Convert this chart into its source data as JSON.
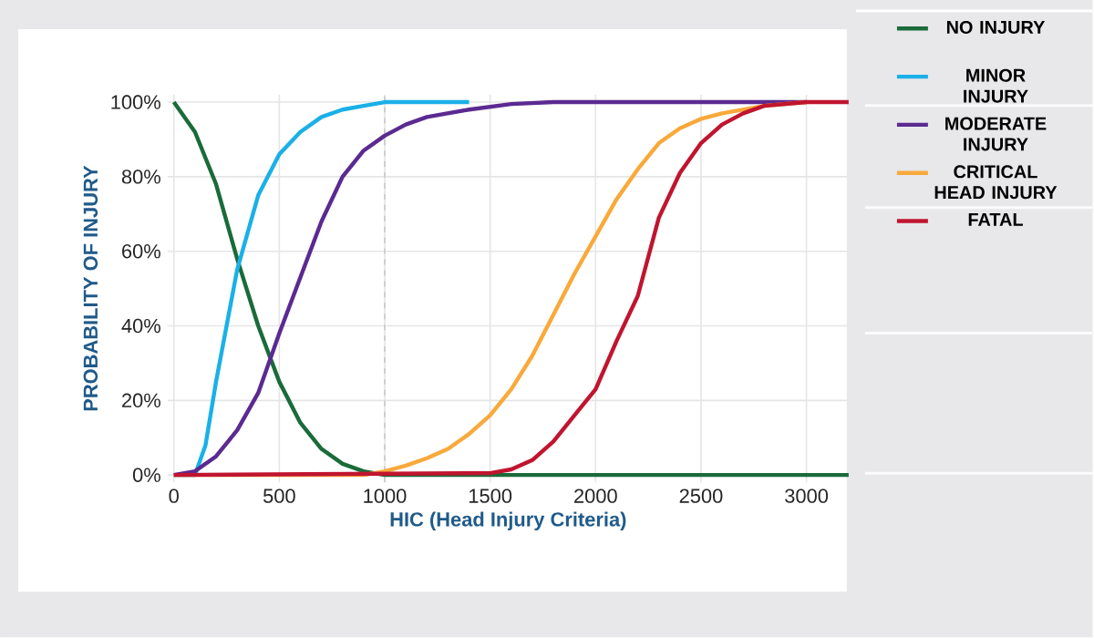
{
  "chart_data": {
    "type": "line",
    "xlabel": "HIC (Head Injury Criteria)",
    "ylabel": "PROBABILITY OF INJURY",
    "xlim": [
      -30,
      3200
    ],
    "ylim": [
      -2,
      102
    ],
    "xticks": [
      0,
      500,
      1000,
      1500,
      2000,
      2500,
      3000
    ],
    "yticks": [
      {
        "value": 0,
        "label": "0%"
      },
      {
        "value": 20,
        "label": "20%"
      },
      {
        "value": 40,
        "label": "40%"
      },
      {
        "value": 60,
        "label": "60%"
      },
      {
        "value": 80,
        "label": "80%"
      },
      {
        "value": 100,
        "label": "100%"
      }
    ],
    "grid": true,
    "legend": "right",
    "line_style": "solid",
    "ref_lines": [
      {
        "axis": "x",
        "value": 1000,
        "color": "#c8c8c8",
        "line_style": "dashed"
      }
    ],
    "series": [
      {
        "name": "NO INJURY",
        "color": "#1a6b3a",
        "x": [
          0,
          100,
          200,
          300,
          400,
          500,
          600,
          700,
          800,
          900,
          1000,
          1500,
          2000,
          2500,
          3000,
          3200
        ],
        "values": [
          100,
          92,
          78,
          58,
          40,
          25,
          14,
          7,
          3,
          1,
          0,
          0,
          0,
          0,
          0,
          0
        ]
      },
      {
        "name": "MINOR INJURY",
        "color": "#1ab0e8",
        "x": [
          0,
          100,
          150,
          200,
          300,
          400,
          500,
          600,
          700,
          800,
          900,
          1000,
          1200,
          1400
        ],
        "values": [
          0,
          0,
          8,
          25,
          55,
          75,
          86,
          92,
          96,
          98,
          99,
          100,
          100,
          100
        ]
      },
      {
        "name": "MODERATE INJURY",
        "color": "#5b2a91",
        "x": [
          0,
          100,
          200,
          300,
          400,
          500,
          600,
          700,
          800,
          900,
          1000,
          1100,
          1200,
          1400,
          1600,
          1800,
          3000
        ],
        "values": [
          0,
          1,
          5,
          12,
          22,
          38,
          53,
          68,
          80,
          87,
          91,
          94,
          96,
          98,
          99.5,
          100,
          100
        ]
      },
      {
        "name": "CRITICAL HEAD INJURY",
        "color": "#f9a93b",
        "x": [
          0,
          900,
          1000,
          1100,
          1200,
          1300,
          1400,
          1500,
          1600,
          1700,
          1800,
          1900,
          2000,
          2100,
          2200,
          2300,
          2400,
          2500,
          2600,
          2800,
          3000
        ],
        "values": [
          0,
          0,
          1,
          2.5,
          4.5,
          7,
          11,
          16,
          23,
          32,
          43,
          54,
          64,
          74,
          82,
          89,
          93,
          95.5,
          97,
          99,
          100
        ]
      },
      {
        "name": "FATAL",
        "color": "#c0152f",
        "x": [
          0,
          1500,
          1600,
          1700,
          1800,
          1900,
          2000,
          2100,
          2200,
          2300,
          2400,
          2500,
          2600,
          2700,
          2800,
          3000,
          3200
        ],
        "values": [
          0,
          0.5,
          1.5,
          4,
          9,
          16,
          23,
          36,
          48,
          69,
          81,
          89,
          94,
          97,
          99,
          100,
          100
        ]
      }
    ]
  }
}
